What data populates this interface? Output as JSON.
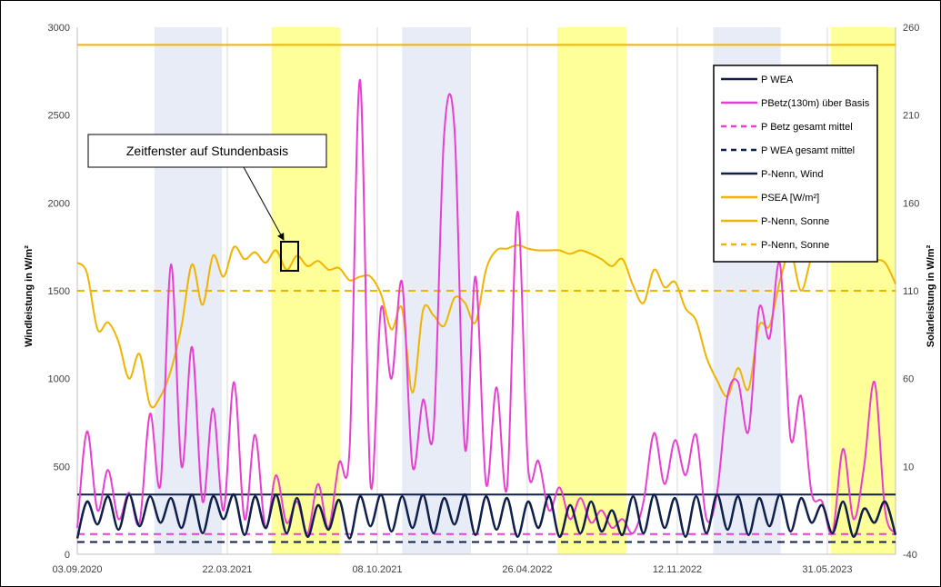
{
  "chart_data": {
    "type": "line",
    "title": "",
    "ylabel_left": "Windleistung in W/m²",
    "ylabel_right": "Solarleistung in W/m²",
    "ylim_left": [
      0,
      3000
    ],
    "ylim_right": [
      -40,
      260
    ],
    "yticks_left": [
      "0",
      "500",
      "1000",
      "1500",
      "2000",
      "2500",
      "3000"
    ],
    "yticks_right": [
      "-40",
      "10",
      "60",
      "110",
      "160",
      "210",
      "260"
    ],
    "xlim": [
      "2020-09-03",
      "2023-08-30"
    ],
    "xticks": [
      {
        "date": "2020-09-03",
        "label": "03.09.2020"
      },
      {
        "date": "2021-03-22",
        "label": "22.03.2021"
      },
      {
        "date": "2021-10-08",
        "label": "08.10.2021"
      },
      {
        "date": "2022-04-26",
        "label": "26.04.2022"
      },
      {
        "date": "2022-11-12",
        "label": "12.11.2022"
      },
      {
        "date": "2023-05-31",
        "label": "31.05.2023"
      }
    ],
    "grid": "vertical",
    "legend_position": "top-right",
    "bands": [
      {
        "start": "2020-12-15",
        "end": "2021-03-15",
        "type": "winter",
        "color": "#e8ecf6"
      },
      {
        "start": "2021-05-20",
        "end": "2021-08-20",
        "type": "summer",
        "color": "#ffff99"
      },
      {
        "start": "2021-11-10",
        "end": "2022-02-10",
        "type": "winter",
        "color": "#e8ecf6"
      },
      {
        "start": "2022-06-05",
        "end": "2022-09-05",
        "type": "summer",
        "color": "#ffff99"
      },
      {
        "start": "2022-12-30",
        "end": "2023-03-30",
        "type": "winter",
        "color": "#e8ecf6"
      },
      {
        "start": "2023-06-05",
        "end": "2023-08-30",
        "type": "summer",
        "color": "#ffff99"
      }
    ],
    "annotation": {
      "text": "Zeitfenster auf Stundenbasis",
      "target_date": "2021-05-23",
      "target_value": 1730
    },
    "series": [
      {
        "name": "P WEA",
        "color": "#0d1f4a",
        "dash": "solid",
        "axis": "left",
        "x": [
          "2020-09-03",
          "2020-09-16",
          "2020-09-30",
          "2020-10-14",
          "2020-10-28",
          "2020-11-11",
          "2020-11-25",
          "2020-12-09",
          "2020-12-23",
          "2021-01-06",
          "2021-01-20",
          "2021-02-03",
          "2021-02-17",
          "2021-03-03",
          "2021-03-17",
          "2021-03-31",
          "2021-04-14",
          "2021-04-28",
          "2021-05-12",
          "2021-05-26",
          "2021-06-09",
          "2021-06-23",
          "2021-07-07",
          "2021-07-21",
          "2021-08-04",
          "2021-08-18",
          "2021-09-01",
          "2021-09-15",
          "2021-09-29",
          "2021-10-13",
          "2021-10-27",
          "2021-11-10",
          "2021-11-24",
          "2021-12-08",
          "2021-12-22",
          "2022-01-05",
          "2022-01-19",
          "2022-02-02",
          "2022-02-16",
          "2022-03-02",
          "2022-03-16",
          "2022-03-30",
          "2022-04-13",
          "2022-04-27",
          "2022-05-11",
          "2022-05-25",
          "2022-06-08",
          "2022-06-22",
          "2022-07-06",
          "2022-07-20",
          "2022-08-03",
          "2022-08-17",
          "2022-08-31",
          "2022-09-14",
          "2022-09-28",
          "2022-10-12",
          "2022-10-26",
          "2022-11-09",
          "2022-11-23",
          "2022-12-07",
          "2022-12-21",
          "2023-01-04",
          "2023-01-18",
          "2023-02-01",
          "2023-02-15",
          "2023-03-01",
          "2023-03-15",
          "2023-03-29",
          "2023-04-12",
          "2023-04-26",
          "2023-05-10",
          "2023-05-24",
          "2023-06-07",
          "2023-06-21",
          "2023-07-05",
          "2023-07-19",
          "2023-08-02",
          "2023-08-16",
          "2023-08-30"
        ],
        "y": [
          90,
          300,
          170,
          330,
          140,
          340,
          160,
          330,
          180,
          320,
          150,
          340,
          120,
          330,
          200,
          340,
          110,
          330,
          150,
          340,
          120,
          320,
          100,
          280,
          140,
          310,
          90,
          330,
          160,
          340,
          130,
          330,
          150,
          340,
          120,
          320,
          170,
          340,
          110,
          330,
          140,
          320,
          100,
          300,
          150,
          330,
          100,
          280,
          120,
          300,
          130,
          250,
          110,
          330,
          120,
          340,
          150,
          320,
          100,
          330,
          120,
          340,
          140,
          330,
          110,
          320,
          160,
          340,
          130,
          320,
          180,
          280,
          120,
          300,
          100,
          260,
          180,
          300,
          110
        ]
      },
      {
        "name": "PBetz(130m) über Basis",
        "color": "#e83fd1",
        "dash": "solid",
        "axis": "left",
        "x": [
          "2020-09-03",
          "2020-09-16",
          "2020-09-30",
          "2020-10-14",
          "2020-10-28",
          "2020-11-11",
          "2020-11-25",
          "2020-12-09",
          "2020-12-23",
          "2021-01-06",
          "2021-01-20",
          "2021-02-03",
          "2021-02-17",
          "2021-03-03",
          "2021-03-17",
          "2021-03-31",
          "2021-04-14",
          "2021-04-28",
          "2021-05-12",
          "2021-05-26",
          "2021-06-09",
          "2021-06-23",
          "2021-07-07",
          "2021-07-21",
          "2021-08-04",
          "2021-08-18",
          "2021-09-01",
          "2021-09-15",
          "2021-09-29",
          "2021-10-13",
          "2021-10-27",
          "2021-11-10",
          "2021-11-24",
          "2021-12-08",
          "2021-12-22",
          "2022-01-05",
          "2022-01-19",
          "2022-02-02",
          "2022-02-16",
          "2022-03-02",
          "2022-03-16",
          "2022-03-30",
          "2022-04-13",
          "2022-04-27",
          "2022-05-11",
          "2022-05-25",
          "2022-06-08",
          "2022-06-22",
          "2022-07-06",
          "2022-07-20",
          "2022-08-03",
          "2022-08-17",
          "2022-08-31",
          "2022-09-14",
          "2022-09-28",
          "2022-10-12",
          "2022-10-26",
          "2022-11-09",
          "2022-11-23",
          "2022-12-07",
          "2022-12-21",
          "2023-01-04",
          "2023-01-18",
          "2023-02-01",
          "2023-02-15",
          "2023-03-01",
          "2023-03-15",
          "2023-03-29",
          "2023-04-12",
          "2023-04-26",
          "2023-05-10",
          "2023-05-24",
          "2023-06-07",
          "2023-06-21",
          "2023-07-05",
          "2023-07-19",
          "2023-08-02",
          "2023-08-16",
          "2023-08-30"
        ],
        "y": [
          150,
          700,
          250,
          480,
          200,
          350,
          180,
          800,
          400,
          1650,
          500,
          1180,
          300,
          830,
          250,
          980,
          200,
          680,
          150,
          450,
          180,
          300,
          120,
          400,
          150,
          520,
          600,
          2700,
          400,
          1400,
          1000,
          1550,
          500,
          880,
          700,
          2380,
          2420,
          600,
          1580,
          400,
          950,
          380,
          1950,
          500,
          530,
          250,
          380,
          200,
          320,
          180,
          250,
          150,
          200,
          120,
          300,
          690,
          400,
          650,
          450,
          680,
          200,
          350,
          900,
          980,
          700,
          1400,
          1230,
          1650,
          660,
          900,
          350,
          300,
          120,
          600,
          200,
          500,
          980,
          250,
          120
        ]
      },
      {
        "name": "P Betz gesamt mittel",
        "color": "#e83fd1",
        "dash": "dashed",
        "axis": "left",
        "value": 115
      },
      {
        "name": "P WEA gesamt mittel",
        "color": "#0d1f4a",
        "dash": "dashed",
        "axis": "left",
        "value": 70
      },
      {
        "name": "P-Nenn, Wind",
        "color": "#0d1f4a",
        "dash": "solid",
        "axis": "left",
        "value": 340
      },
      {
        "name": "PSEA [W/m²]",
        "color": "#f0b400",
        "dash": "solid",
        "axis": "right",
        "x": [
          "2020-09-03",
          "2020-09-16",
          "2020-09-30",
          "2020-10-14",
          "2020-10-28",
          "2020-11-11",
          "2020-11-25",
          "2020-12-09",
          "2020-12-23",
          "2021-01-06",
          "2021-01-20",
          "2021-02-03",
          "2021-02-17",
          "2021-03-03",
          "2021-03-17",
          "2021-03-31",
          "2021-04-14",
          "2021-04-28",
          "2021-05-12",
          "2021-05-26",
          "2021-06-09",
          "2021-06-23",
          "2021-07-07",
          "2021-07-21",
          "2021-08-04",
          "2021-08-18",
          "2021-09-01",
          "2021-09-15",
          "2021-09-29",
          "2021-10-13",
          "2021-10-27",
          "2021-11-10",
          "2021-11-24",
          "2021-12-08",
          "2021-12-22",
          "2022-01-05",
          "2022-01-19",
          "2022-02-02",
          "2022-02-16",
          "2022-03-02",
          "2022-03-16",
          "2022-03-30",
          "2022-04-13",
          "2022-04-27",
          "2022-05-11",
          "2022-05-25",
          "2022-06-08",
          "2022-06-22",
          "2022-07-06",
          "2022-07-20",
          "2022-08-03",
          "2022-08-17",
          "2022-08-31",
          "2022-09-14",
          "2022-09-28",
          "2022-10-12",
          "2022-10-26",
          "2022-11-09",
          "2022-11-23",
          "2022-12-07",
          "2022-12-21",
          "2023-01-04",
          "2023-01-18",
          "2023-02-01",
          "2023-02-15",
          "2023-03-01",
          "2023-03-15",
          "2023-03-29",
          "2023-04-12",
          "2023-04-26",
          "2023-05-10",
          "2023-05-24",
          "2023-06-07",
          "2023-06-21",
          "2023-07-05",
          "2023-07-19",
          "2023-08-02",
          "2023-08-16",
          "2023-08-30"
        ],
        "y": [
          126,
          120,
          88,
          92,
          81,
          60,
          74,
          45,
          50,
          65,
          90,
          125,
          102,
          130,
          118,
          135,
          128,
          132,
          126,
          133,
          122,
          130,
          124,
          127,
          122,
          123,
          116,
          118,
          118,
          108,
          88,
          100,
          52,
          99,
          96,
          90,
          106,
          103,
          92,
          122,
          133,
          134,
          136,
          134,
          133,
          133,
          133,
          131,
          133,
          131,
          128,
          124,
          128,
          113,
          103,
          122,
          112,
          115,
          100,
          93,
          72,
          59,
          50,
          66,
          54,
          90,
          90,
          116,
          132,
          110,
          129,
          136,
          130,
          136,
          136,
          132,
          128,
          126,
          114
        ]
      },
      {
        "name": "P-Nenn, Sonne",
        "color": "#f0b400",
        "dash": "solid",
        "axis": "right",
        "value": 250
      },
      {
        "name": "P-Nenn, Sonne",
        "color": "#f0b400",
        "dash": "dashed",
        "axis": "right",
        "value": 110
      }
    ]
  }
}
